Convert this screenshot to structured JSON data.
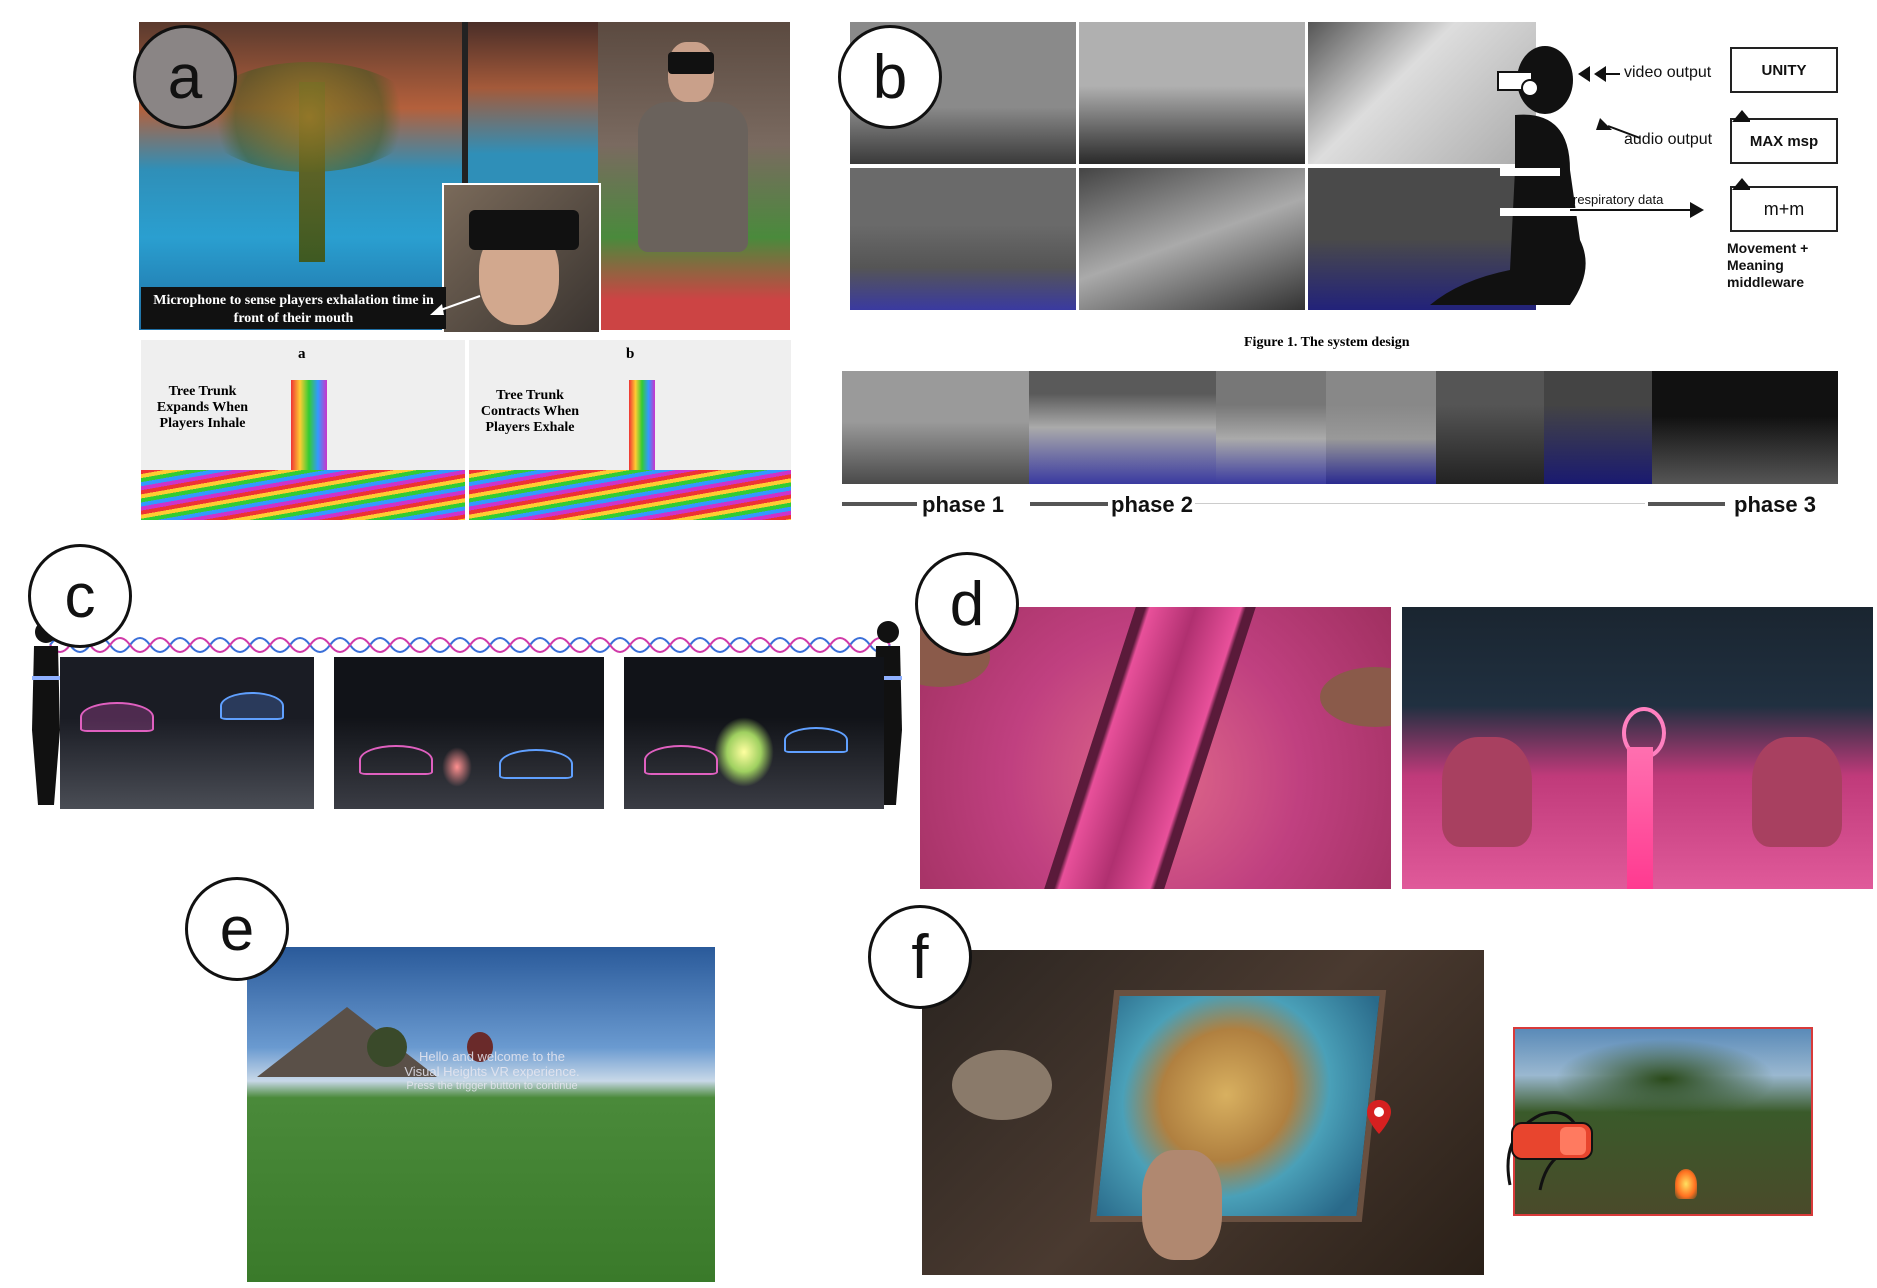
{
  "panels": {
    "a": {
      "letter": "a",
      "callout": "Microphone to sense players exhalation time in front of their mouth",
      "sub_a": "a",
      "sub_b": "b",
      "caption_a": "Tree Trunk Expands When Players Inhale",
      "caption_b": "Tree Trunk Contracts When Players Exhale"
    },
    "b": {
      "letter": "b",
      "video_output": "video output",
      "audio_output": "audio output",
      "respiratory_data": "respiratory data",
      "box_unity": "UNITY",
      "box_max": "MAX msp",
      "box_mm": "m+m",
      "middleware": "Movement + Meaning middleware",
      "figure_caption": "Figure 1. The system design",
      "phase1": "phase 1",
      "phase2": "phase 2",
      "phase3": "phase 3"
    },
    "c": {
      "letter": "c"
    },
    "d": {
      "letter": "d"
    },
    "e": {
      "letter": "e",
      "welcome_line1": "Hello and welcome to the",
      "welcome_line2": "Visual Heights VR experience.",
      "welcome_line3": "Press the trigger button to continue"
    },
    "f": {
      "letter": "f"
    }
  },
  "colors": {
    "panel_letter_grey": "#8a8585",
    "wave_blue": "#3a6fd8",
    "wave_pink": "#d03aa8",
    "magenta_glow": "#e0409a",
    "vr_headset_red": "#e8452e"
  }
}
